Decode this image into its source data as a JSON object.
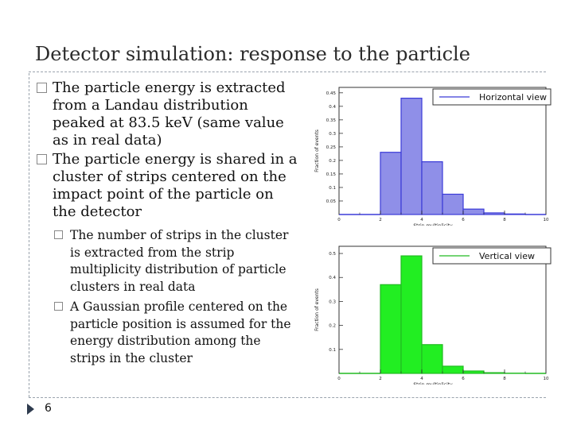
{
  "slide": {
    "title": "Detector simulation: response to the particle",
    "page_number": "6"
  },
  "bullets": [
    {
      "text": "The particle energy is extracted from a Landau distribution peaked at 83.5 keV (same value as in real data)"
    },
    {
      "text": "The particle energy is shared in a cluster of strips centered on the impact point of the particle on the detector"
    }
  ],
  "subbullets": [
    {
      "text": "The number of strips in the cluster is extracted from the strip multiplicity distribution of particle clusters in real data"
    },
    {
      "text": "A Gaussian profile centered on the particle position is assumed for the energy distribution among the strips in the cluster"
    }
  ],
  "chart_data": [
    {
      "type": "bar",
      "legend": "Horizontal view",
      "legend_position": "top-right",
      "xlabel": "Strip multiplicity",
      "ylabel": "Fraction of events",
      "xlim": [
        0,
        10
      ],
      "ylim": [
        0,
        0.47
      ],
      "x_ticks": [
        "0",
        "2",
        "4",
        "6",
        "8",
        "10"
      ],
      "y_ticks": [
        "0.05",
        "0.1",
        "0.15",
        "0.2",
        "0.25",
        "0.3",
        "0.35",
        "0.4",
        "0.45"
      ],
      "bin_edges": [
        2,
        3,
        4,
        5,
        6,
        7,
        8,
        9
      ],
      "values": [
        0.23,
        0.43,
        0.195,
        0.075,
        0.02,
        0.006,
        0.002
      ],
      "color": "#3b3bd8",
      "fill": "#8f8fe8",
      "grid": false
    },
    {
      "type": "bar",
      "legend": "Vertical view",
      "legend_position": "top-right",
      "xlabel": "Strip multiplicity",
      "ylabel": "Fraction of events",
      "xlim": [
        0,
        10
      ],
      "ylim": [
        0,
        0.53
      ],
      "x_ticks": [
        "0",
        "2",
        "4",
        "6",
        "8",
        "10"
      ],
      "y_ticks": [
        "0.1",
        "0.2",
        "0.3",
        "0.4",
        "0.5"
      ],
      "bin_edges": [
        2,
        3,
        4,
        5,
        6,
        7,
        8,
        9
      ],
      "values": [
        0.37,
        0.49,
        0.12,
        0.03,
        0.01,
        0.003,
        0.001
      ],
      "color": "#22bb22",
      "fill": "#22ee22",
      "grid": false
    }
  ]
}
